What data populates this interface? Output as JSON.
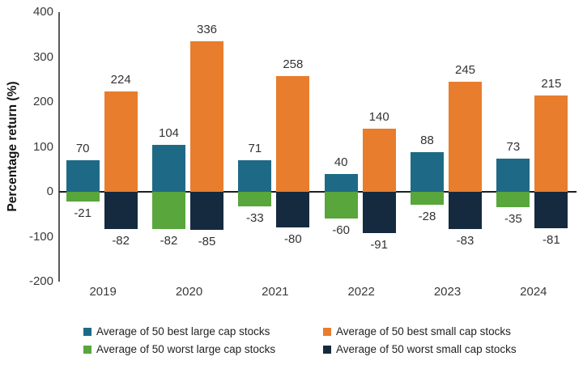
{
  "chart_data": {
    "type": "bar",
    "ylabel": "Percentage return (%)",
    "ylim": [
      -200,
      400
    ],
    "yticks": [
      400,
      300,
      200,
      100,
      0,
      -100,
      -200
    ],
    "categories": [
      "2019",
      "2020",
      "2021",
      "2022",
      "2023",
      "2024"
    ],
    "series": [
      {
        "name": "Average of 50 best large cap stocks",
        "color": "#1E6A86",
        "values": [
          70,
          104,
          71,
          40,
          88,
          73
        ]
      },
      {
        "name": "Average of 50 best small cap stocks",
        "color": "#E87D2E",
        "values": [
          224,
          336,
          258,
          140,
          245,
          215
        ]
      },
      {
        "name": "Average of 50 worst large cap stocks",
        "color": "#58A63C",
        "values": [
          -21,
          -82,
          -33,
          -60,
          -28,
          -35
        ]
      },
      {
        "name": "Average of 50 worst small cap stocks",
        "color": "#152A3F",
        "values": [
          -82,
          -85,
          -80,
          -91,
          -83,
          -81
        ]
      }
    ],
    "legend_position": "bottom",
    "grid": false,
    "data_labels": true,
    "style": {
      "axis_line_color": "#595959",
      "zero_line_color": "#1f1f1f",
      "tick_label_color": "#3a3a3a"
    }
  }
}
